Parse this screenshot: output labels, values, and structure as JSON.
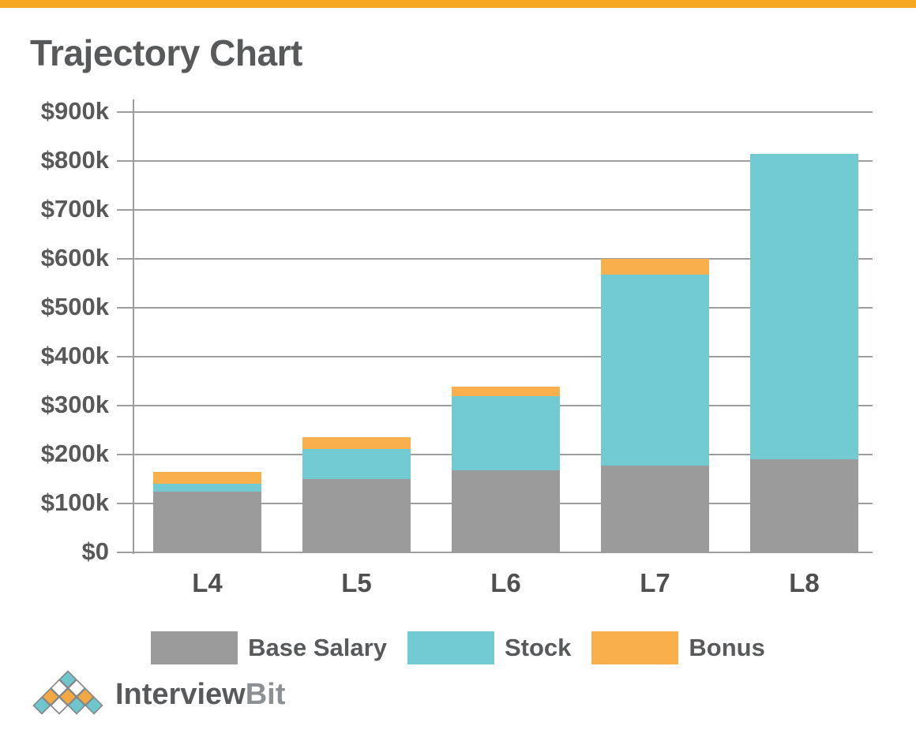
{
  "page": {
    "top_bar_color": "#f6a823",
    "background": "#ffffff"
  },
  "title": "Trajectory Chart",
  "chart_data": {
    "type": "bar",
    "stacked": true,
    "title": "Trajectory Chart",
    "categories": [
      "L4",
      "L5",
      "L6",
      "L7",
      "L8"
    ],
    "series": [
      {
        "name": "Base Salary",
        "color": "#9b9b9b",
        "values": [
          125,
          150,
          168,
          177,
          191
        ]
      },
      {
        "name": "Stock",
        "color": "#72cbd2",
        "values": [
          15,
          62,
          152,
          391,
          624
        ]
      },
      {
        "name": "Bonus",
        "color": "#f9b04c",
        "values": [
          25,
          23,
          18,
          32,
          0
        ]
      }
    ],
    "totals_k": [
      165,
      235,
      338,
      600,
      815
    ],
    "unit": "$k",
    "ylim": [
      0,
      900
    ],
    "y_tick_step": 100,
    "y_tick_labels": [
      "$0",
      "$100k",
      "$200k",
      "$300k",
      "$400k",
      "$500k",
      "$600k",
      "$700k",
      "$800k",
      "$900k"
    ],
    "grid": "horizontal",
    "legend_position": "bottom",
    "axis_color": "#9e9e9e",
    "tick_label_color": "#595959",
    "category_label_color": "#4f4f4f"
  },
  "legend": {
    "items": [
      {
        "label": "Base Salary",
        "color": "#9b9b9b"
      },
      {
        "label": "Stock",
        "color": "#72cbd2"
      },
      {
        "label": "Bonus",
        "color": "#f9b04c"
      }
    ]
  },
  "logo": {
    "text_primary": "Interview",
    "text_secondary": "Bit",
    "colors": {
      "teal": "#6ec6cd",
      "orange": "#f2a943",
      "white": "#ffffff",
      "outline": "#85878a"
    },
    "pyramid_rows": [
      [
        "teal"
      ],
      [
        "white",
        "white"
      ],
      [
        "orange",
        "orange",
        "orange"
      ],
      [
        "teal",
        "white",
        "teal",
        "teal"
      ]
    ]
  }
}
